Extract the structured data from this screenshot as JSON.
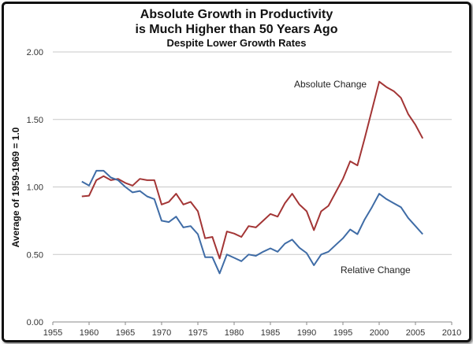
{
  "chart_data": {
    "type": "line",
    "title": [
      "Absolute Growth in Productivity",
      "is Much Higher than 50 Years Ago"
    ],
    "subtitle": "Despite Lower Growth Rates",
    "xlabel": "",
    "ylabel": "Average of 1959-1969 = 1.0",
    "xlim": [
      1955,
      2010
    ],
    "ylim": [
      0,
      2
    ],
    "xticks": [
      "1955",
      "1960",
      "1965",
      "1970",
      "1975",
      "1980",
      "1985",
      "1990",
      "1995",
      "2000",
      "2005",
      "2010"
    ],
    "yticks": [
      "0.00",
      "0.50",
      "1.00",
      "1.50",
      "2.00"
    ],
    "grid": "horizontal",
    "x": [
      1959,
      1960,
      1961,
      1962,
      1963,
      1964,
      1965,
      1966,
      1967,
      1968,
      1969,
      1970,
      1971,
      1972,
      1973,
      1974,
      1975,
      1976,
      1977,
      1978,
      1979,
      1980,
      1981,
      1982,
      1983,
      1984,
      1985,
      1986,
      1987,
      1988,
      1989,
      1990,
      1991,
      1992,
      1993,
      1994,
      1995,
      1996,
      1997,
      1998,
      1999,
      2000,
      2001,
      2002,
      2003,
      2004,
      2005,
      2006
    ],
    "series": [
      {
        "name": "Absolute Change",
        "color": "#a33535",
        "values": [
          0.93,
          0.935,
          1.05,
          1.08,
          1.05,
          1.06,
          1.03,
          1.01,
          1.06,
          1.05,
          1.05,
          0.87,
          0.89,
          0.95,
          0.87,
          0.89,
          0.82,
          0.62,
          0.63,
          0.47,
          0.67,
          0.655,
          0.63,
          0.71,
          0.7,
          0.75,
          0.8,
          0.78,
          0.88,
          0.95,
          0.87,
          0.82,
          0.68,
          0.82,
          0.86,
          0.96,
          1.06,
          1.19,
          1.16,
          1.36,
          1.57,
          1.78,
          1.74,
          1.71,
          1.66,
          1.54,
          1.46,
          1.36
        ]
      },
      {
        "name": "Relative Change",
        "color": "#3f6ca6",
        "values": [
          1.04,
          1.01,
          1.12,
          1.12,
          1.07,
          1.05,
          1.0,
          0.96,
          0.97,
          0.93,
          0.91,
          0.75,
          0.74,
          0.78,
          0.7,
          0.71,
          0.65,
          0.48,
          0.48,
          0.36,
          0.5,
          0.475,
          0.45,
          0.5,
          0.49,
          0.52,
          0.545,
          0.52,
          0.58,
          0.61,
          0.55,
          0.51,
          0.42,
          0.5,
          0.52,
          0.57,
          0.62,
          0.685,
          0.65,
          0.76,
          0.85,
          0.95,
          0.91,
          0.88,
          0.85,
          0.77,
          0.71,
          0.65
        ]
      }
    ]
  }
}
